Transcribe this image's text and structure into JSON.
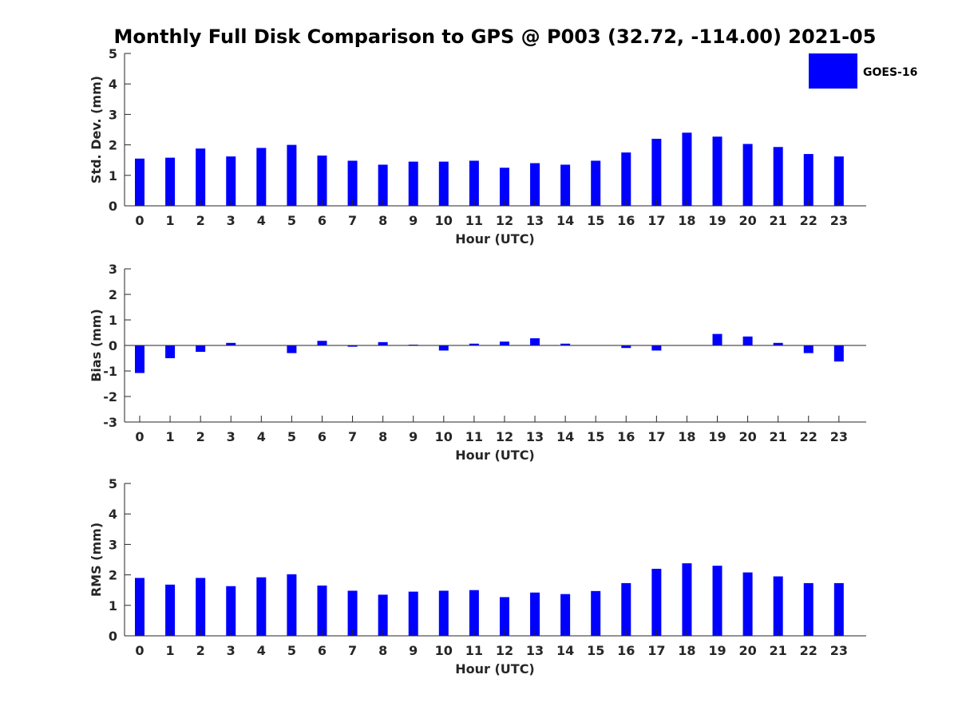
{
  "figure": {
    "title": "Monthly Full Disk Comparison to GPS @ P003 (32.72, -114.00) 2021-05",
    "legend": {
      "label": "GOES-16",
      "color": "#0000ff",
      "placement": "top-right"
    },
    "bar_color": "#0000ff"
  },
  "chart_data": [
    {
      "type": "bar",
      "name": "std-dev",
      "categories": [
        "0",
        "1",
        "2",
        "3",
        "4",
        "5",
        "6",
        "7",
        "8",
        "9",
        "10",
        "11",
        "12",
        "13",
        "14",
        "15",
        "16",
        "17",
        "18",
        "19",
        "20",
        "21",
        "22",
        "23"
      ],
      "values": [
        1.55,
        1.58,
        1.88,
        1.62,
        1.9,
        2.0,
        1.65,
        1.48,
        1.35,
        1.45,
        1.45,
        1.48,
        1.25,
        1.4,
        1.35,
        1.48,
        1.75,
        2.2,
        2.4,
        2.27,
        2.03,
        1.93,
        1.7,
        1.62
      ],
      "xlabel": "Hour (UTC)",
      "ylabel": "Std. Dev. (mm)",
      "ylim": [
        0,
        5
      ],
      "yticks": [
        0,
        1,
        2,
        3,
        4,
        5
      ],
      "grid": false
    },
    {
      "type": "bar",
      "name": "bias",
      "categories": [
        "0",
        "1",
        "2",
        "3",
        "4",
        "5",
        "6",
        "7",
        "8",
        "9",
        "10",
        "11",
        "12",
        "13",
        "14",
        "15",
        "16",
        "17",
        "18",
        "19",
        "20",
        "21",
        "22",
        "23"
      ],
      "values": [
        -1.08,
        -0.5,
        -0.25,
        0.1,
        0.0,
        -0.3,
        0.18,
        -0.05,
        0.13,
        0.03,
        -0.2,
        0.07,
        0.15,
        0.28,
        0.07,
        0.0,
        -0.1,
        -0.2,
        0.0,
        0.45,
        0.35,
        0.1,
        -0.3,
        -0.63
      ],
      "xlabel": "Hour (UTC)",
      "ylabel": "Bias (mm)",
      "ylim": [
        -3,
        3
      ],
      "yticks": [
        -3,
        -2,
        -1,
        0,
        1,
        2,
        3
      ],
      "grid": false
    },
    {
      "type": "bar",
      "name": "rms",
      "categories": [
        "0",
        "1",
        "2",
        "3",
        "4",
        "5",
        "6",
        "7",
        "8",
        "9",
        "10",
        "11",
        "12",
        "13",
        "14",
        "15",
        "16",
        "17",
        "18",
        "19",
        "20",
        "21",
        "22",
        "23"
      ],
      "values": [
        1.9,
        1.68,
        1.9,
        1.63,
        1.92,
        2.02,
        1.65,
        1.48,
        1.35,
        1.45,
        1.48,
        1.5,
        1.27,
        1.42,
        1.37,
        1.47,
        1.73,
        2.2,
        2.38,
        2.3,
        2.08,
        1.95,
        1.73,
        1.73
      ],
      "xlabel": "Hour (UTC)",
      "ylabel": "RMS (mm)",
      "ylim": [
        0,
        5
      ],
      "yticks": [
        0,
        1,
        2,
        3,
        4,
        5
      ],
      "grid": false
    }
  ]
}
